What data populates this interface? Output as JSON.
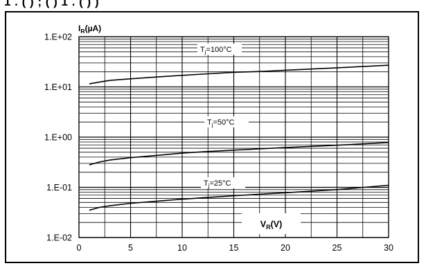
{
  "header_text": "1 . ( ) ; ( ) 1 . ( ) )",
  "chart_data": {
    "type": "line",
    "y_scale": "log",
    "ylabel": {
      "main": "I",
      "sub": "R",
      "tail": "(µA)"
    },
    "xlabel": {
      "main": "V",
      "sub": "R",
      "tail": "(V)"
    },
    "xlim": [
      0,
      30
    ],
    "ylim": [
      0.01,
      100
    ],
    "x_ticks": [
      0,
      5,
      10,
      15,
      20,
      25,
      30
    ],
    "x_tick_labels": [
      "0",
      "5",
      "10",
      "15",
      "20",
      "25",
      "30"
    ],
    "y_ticks": [
      0.01,
      0.1,
      1,
      10,
      100
    ],
    "y_tick_labels": [
      "1.E-02",
      "1.E-01",
      "1.E+00",
      "1.E+01",
      "1.E+02"
    ],
    "grid": true,
    "series": [
      {
        "label": {
          "main": "T",
          "sub": "j",
          "tail": "=100°C"
        },
        "x": [
          1,
          2,
          3,
          5,
          8,
          10,
          12,
          15,
          18,
          20,
          25,
          30
        ],
        "y": [
          11.5,
          12.5,
          13.5,
          14.5,
          16.0,
          17.0,
          18.0,
          19.5,
          20.5,
          21.5,
          24.0,
          27.0
        ]
      },
      {
        "label": {
          "main": "T",
          "sub": "j",
          "tail": "=50°C"
        },
        "x": [
          1,
          2,
          3,
          5,
          8,
          10,
          12,
          15,
          18,
          20,
          25,
          30
        ],
        "y": [
          0.28,
          0.32,
          0.35,
          0.39,
          0.44,
          0.48,
          0.51,
          0.55,
          0.59,
          0.62,
          0.69,
          0.78
        ]
      },
      {
        "label": {
          "main": "T",
          "sub": "j",
          "tail": "=25°C"
        },
        "x": [
          1,
          2,
          3,
          5,
          8,
          10,
          12,
          15,
          18,
          20,
          25,
          30
        ],
        "y": [
          0.035,
          0.04,
          0.043,
          0.048,
          0.054,
          0.058,
          0.062,
          0.068,
          0.074,
          0.078,
          0.09,
          0.11
        ]
      }
    ]
  }
}
